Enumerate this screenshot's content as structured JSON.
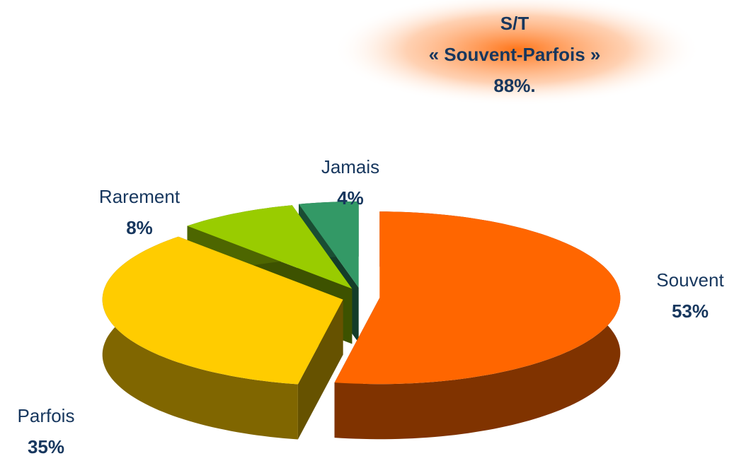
{
  "chart_data": {
    "type": "pie",
    "annotation": {
      "lines": [
        "S/T",
        "« Souvent-Parfois »",
        "88%."
      ]
    },
    "categories": [
      "Souvent",
      "Parfois",
      "Rarement",
      "Jamais"
    ],
    "values": [
      53,
      35,
      8,
      4
    ],
    "value_labels": [
      "53%",
      "35%",
      "8%",
      "4%"
    ],
    "colors": [
      "#ff6600",
      "#ffcc00",
      "#99cc00",
      "#339966"
    ]
  }
}
